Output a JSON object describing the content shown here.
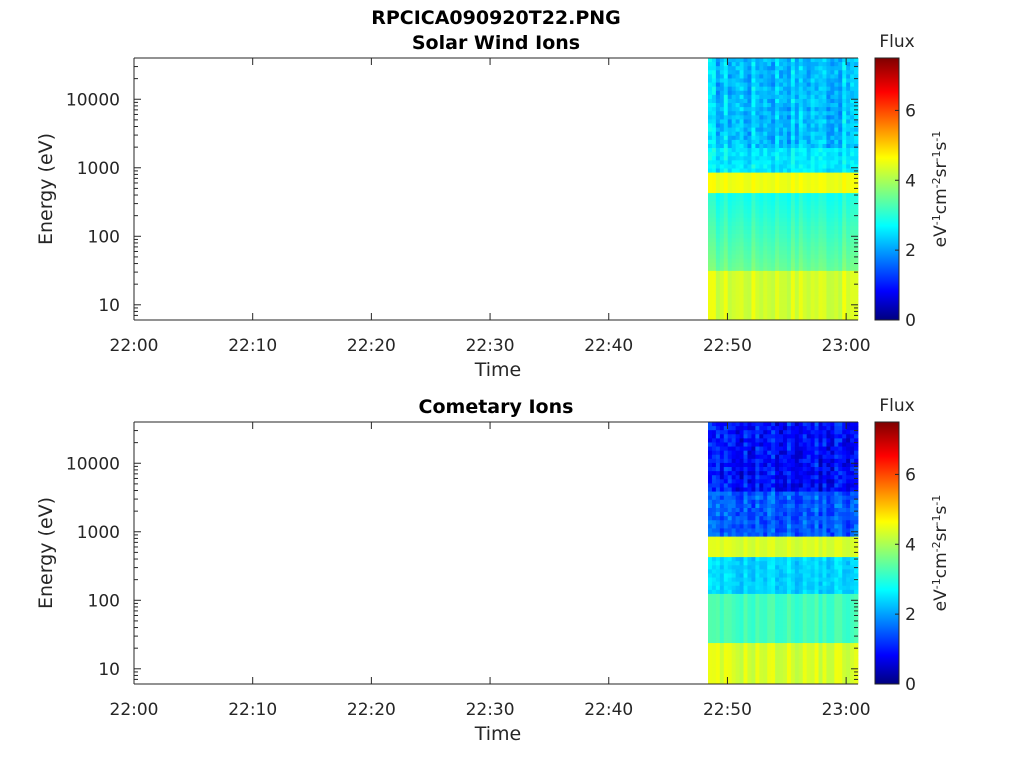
{
  "figure_title": "RPCICA090920T22.PNG",
  "chart_data": [
    {
      "type": "heatmap",
      "title": "Solar Wind Ions",
      "xlabel": "Time",
      "ylabel": "Energy (eV)",
      "x_ticks": [
        "22:00",
        "22:10",
        "22:20",
        "22:30",
        "22:40",
        "22:50",
        "23:00"
      ],
      "xlim": [
        "22:00",
        "23:01"
      ],
      "data_start": "22:48",
      "y_scale": "log",
      "y_ticks": [
        "10",
        "100",
        "1000",
        "10000"
      ],
      "ylim": [
        6,
        40000
      ],
      "colorbar": {
        "label": "Flux",
        "units": "eV-1cm-2sr-1s-1",
        "range": [
          0,
          7.5
        ],
        "ticks": [
          "0",
          "2",
          "4",
          "6"
        ],
        "colormap": "jet"
      },
      "description_of_values": "Flux ~2-3 at high energies (>2 keV), ~4.5-5 band near 600 eV, ~3.5-5 at low energies (<30 eV)"
    },
    {
      "type": "heatmap",
      "title": "Cometary Ions",
      "xlabel": "Time",
      "ylabel": "Energy (eV)",
      "x_ticks": [
        "22:00",
        "22:10",
        "22:20",
        "22:30",
        "22:40",
        "22:50",
        "23:00"
      ],
      "xlim": [
        "22:00",
        "23:01"
      ],
      "data_start": "22:48",
      "y_scale": "log",
      "y_ticks": [
        "10",
        "100",
        "1000",
        "10000"
      ],
      "ylim": [
        6,
        40000
      ],
      "colorbar": {
        "label": "Flux",
        "units": "eV-1cm-2sr-1s-1",
        "range": [
          0,
          7.5
        ],
        "ticks": [
          "0",
          "2",
          "4",
          "6"
        ],
        "colormap": "jet"
      },
      "description_of_values": "Flux ~0.5-1.5 at high energies (>5 keV), ~4.5 band near 600 eV, ~3.5-4.8 at low energies"
    }
  ]
}
